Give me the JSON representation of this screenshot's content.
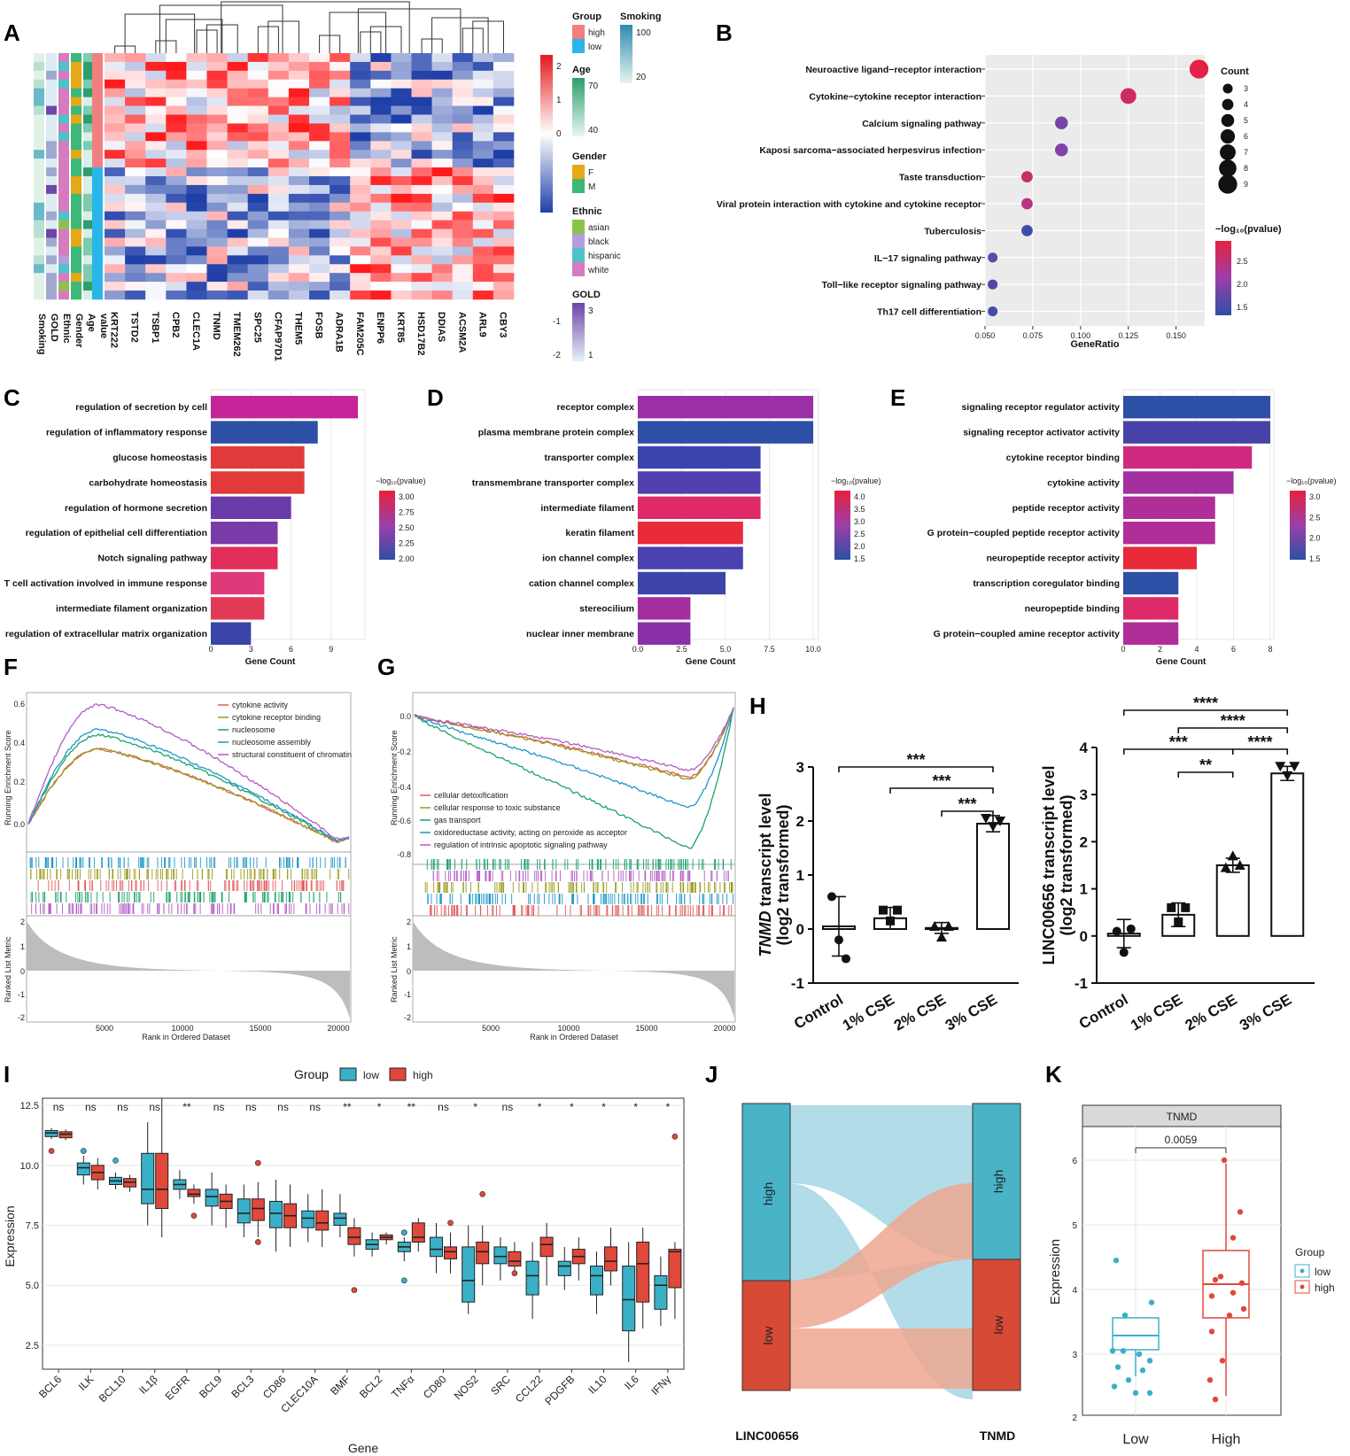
{
  "panels": {
    "A": "A",
    "B": "B",
    "C": "C",
    "D": "D",
    "E": "E",
    "F": "F",
    "G": "G",
    "H": "H",
    "I": "I",
    "J": "J",
    "K": "K"
  },
  "heatmap": {
    "annotation_labels": [
      "Smoking",
      "GOLD",
      "Ethnic",
      "Gender",
      "Age",
      "value"
    ],
    "genes": [
      "KRT222",
      "TSTD2",
      "TSBP1",
      "CPB2",
      "CLEC1A",
      "TNMD",
      "TMEM262",
      "SPC25",
      "CFAP97D1",
      "THEM5",
      "FOSB",
      "ADRA1B",
      "FAM205C",
      "ENPP6",
      "KRT85",
      "HSD17B2",
      "DDIAS",
      "ACSM2A",
      "ARL9",
      "CBY3"
    ],
    "scale_ticks": [
      "2",
      "1",
      "0",
      "-1",
      "-2"
    ],
    "legend": {
      "group_title": "Group",
      "group_items": [
        "high",
        "low"
      ],
      "smoking_title": "Smoking",
      "smoking_ticks": [
        "100",
        "20"
      ],
      "age_title": "Age",
      "age_ticks": [
        "70",
        "40"
      ],
      "gender_title": "Gender",
      "gender_items": [
        "F",
        "M"
      ],
      "ethnic_title": "Ethnic",
      "ethnic_items": [
        "asian",
        "black",
        "hispanic",
        "white"
      ],
      "gold_title": "GOLD",
      "gold_ticks": [
        "3",
        "1"
      ]
    },
    "colors": {
      "high": "#f08080",
      "low": "#29b6e8",
      "F": "#e6a817",
      "M": "#3cb878",
      "asian": "#8bc34a",
      "black": "#b39ddb",
      "hispanic": "#4ec2c7",
      "white": "#d67bbf"
    }
  },
  "chart_data": [
    {
      "panel": "B",
      "type": "scatter",
      "categories": [
        "Neuroactive ligand−receptor interaction",
        "Cytokine−cytokine receptor interaction",
        "Calcium signaling pathway",
        "Kaposi sarcoma−associated herpesvirus infection",
        "Taste transduction",
        "Viral protein interaction with cytokine and cytokine receptor",
        "Tuberculosis",
        "IL−17 signaling pathway",
        "Toll−like receptor signaling pathway",
        "Th17 cell differentiation"
      ],
      "gene_ratio": [
        0.162,
        0.125,
        0.09,
        0.09,
        0.072,
        0.072,
        0.072,
        0.054,
        0.054,
        0.054
      ],
      "count": [
        9,
        7,
        5,
        5,
        4,
        4,
        4,
        3,
        3,
        3
      ],
      "neg_log10_p": [
        2.75,
        2.55,
        1.85,
        1.95,
        2.5,
        2.35,
        1.5,
        1.75,
        1.6,
        1.55
      ],
      "xlabel": "GeneRatio",
      "xlim": [
        0.05,
        0.165
      ],
      "xticks": [
        "0.050",
        "0.075",
        "0.100",
        "0.125",
        "0.150"
      ],
      "size_legend_title": "Count",
      "size_legend": [
        "3",
        "4",
        "5",
        "6",
        "7",
        "8",
        "9"
      ],
      "color_legend_title": "−log₁₀(pvalue)",
      "color_legend_ticks": [
        "2.5",
        "2.0",
        "1.5"
      ]
    },
    {
      "panel": "C",
      "type": "bar",
      "categories": [
        "regulation of secretion by cell",
        "regulation of inflammatory response",
        "glucose homeostasis",
        "carbohydrate homeostasis",
        "regulation of hormone secretion",
        "regulation of epithelial cell differentiation",
        "Notch signaling pathway",
        "T cell activation involved in immune response",
        "intermediate filament organization",
        "regulation of extracellular matrix organization"
      ],
      "values": [
        11,
        8,
        7,
        7,
        6,
        5,
        5,
        4,
        4,
        3
      ],
      "xlabel": "Gene Count",
      "xticks": [
        "0",
        "3",
        "6",
        "9"
      ],
      "legend_title": "−log₁₀(pvalue)",
      "legend_ticks": [
        "3.00",
        "2.75",
        "2.50",
        "2.25",
        "2.00"
      ]
    },
    {
      "panel": "D",
      "type": "bar",
      "categories": [
        "receptor complex",
        "plasma membrane protein complex",
        "transporter complex",
        "transmembrane transporter complex",
        "intermediate filament",
        "keratin filament",
        "ion channel complex",
        "cation channel complex",
        "stereocilium",
        "nuclear inner membrane"
      ],
      "values": [
        10,
        10,
        7,
        7,
        7,
        6,
        6,
        5,
        3,
        3
      ],
      "xlabel": "Gene Count",
      "xticks": [
        "0.0",
        "2.5",
        "5.0",
        "7.5",
        "10.0"
      ],
      "legend_title": "−log₁₀(pvalue)",
      "legend_ticks": [
        "4.0",
        "3.5",
        "3.0",
        "2.5",
        "2.0",
        "1.5"
      ]
    },
    {
      "panel": "E",
      "type": "bar",
      "categories": [
        "signaling receptor regulator activity",
        "signaling receptor activator activity",
        "cytokine receptor binding",
        "cytokine activity",
        "peptide receptor activity",
        "G protein−coupled peptide receptor activity",
        "neuropeptide receptor activity",
        "transcription coregulator binding",
        "neuropeptide binding",
        "G protein−coupled amine receptor activity"
      ],
      "values": [
        8,
        8,
        7,
        6,
        5,
        5,
        4,
        3,
        3,
        3
      ],
      "xlabel": "Gene Count",
      "xticks": [
        "0",
        "2",
        "4",
        "6",
        "8"
      ],
      "legend_title": "−log₁₀(pvalue)",
      "legend_ticks": [
        "3.0",
        "2.5",
        "2.0",
        "1.5"
      ]
    },
    {
      "panel": "F",
      "type": "line",
      "series": [
        "cytokine activity",
        "cytokine receptor binding",
        "nucleosome",
        "nucleosome assembly",
        "structural constituent of chromatin"
      ],
      "ylabel": "Running Enrichment Score",
      "ylabel2": "Ranked List Metric",
      "xlabel": "Rank in Ordered Dataset",
      "yticks": [
        "0.6",
        "0.4",
        "0.2",
        "0.0"
      ],
      "yticks2": [
        "2",
        "1",
        "0",
        "-1",
        "-2"
      ],
      "xticks": [
        "5000",
        "10000",
        "15000",
        "20000"
      ]
    },
    {
      "panel": "G",
      "type": "line",
      "series": [
        "cellular detoxification",
        "cellular response to toxic substance",
        "gas transport",
        "oxidoreductase activity, acting on peroxide as acceptor",
        "regulation of intrinsic apoptotic signaling pathway"
      ],
      "ylabel": "Running Enrichment Score",
      "ylabel2": "Ranked List Metric",
      "xlabel": "Rank in Ordered Dataset",
      "yticks": [
        "0.0",
        "-0.2",
        "-0.4",
        "-0.6",
        "-0.8"
      ],
      "yticks2": [
        "2",
        "1",
        "0",
        "-1",
        "-2"
      ],
      "xticks": [
        "5000",
        "10000",
        "15000",
        "20000"
      ]
    },
    {
      "panel": "H1",
      "type": "bar",
      "categories": [
        "Control",
        "1% CSE",
        "2% CSE",
        "3% CSE"
      ],
      "values": [
        0.05,
        0.2,
        0.02,
        1.95
      ],
      "ylabel_italic": "TNMD",
      "ylabel": " transcript level",
      "ylabel2": "(log2 transformed)",
      "ylim": [
        -1,
        3
      ],
      "yticks": [
        "-1",
        "0",
        "1",
        "2",
        "3"
      ],
      "significance": [
        "***",
        "***",
        "***"
      ]
    },
    {
      "panel": "H2",
      "type": "bar",
      "categories": [
        "Control",
        "1% CSE",
        "2% CSE",
        "3% CSE"
      ],
      "values": [
        0.05,
        0.45,
        1.5,
        3.45
      ],
      "ylabel": "LINC00656 transcript level",
      "ylabel2": "(log2 transformed)",
      "ylim": [
        -1,
        4
      ],
      "yticks": [
        "-1",
        "0",
        "1",
        "2",
        "3",
        "4"
      ],
      "significance": [
        "****",
        "****",
        "***",
        "****",
        "**"
      ]
    },
    {
      "panel": "I",
      "type": "box",
      "categories": [
        "BCL6",
        "ILK",
        "BCL10",
        "IL1β",
        "EGFR",
        "BCL9",
        "BCL3",
        "CD86",
        "CLEC10A",
        "BMF",
        "BCL2",
        "TNFα",
        "CD80",
        "NOS2",
        "SRC",
        "CCL22",
        "PDGFB",
        "IL10",
        "IL6",
        "IFNγ"
      ],
      "significance": [
        "ns",
        "ns",
        "ns",
        "ns",
        "**",
        "ns",
        "ns",
        "ns",
        "ns",
        "**",
        "*",
        "**",
        "ns",
        "*",
        "ns",
        "*",
        "*",
        "*",
        "*",
        "*"
      ],
      "legend_title": "Group",
      "legend_items": [
        "low",
        "high"
      ],
      "ylabel": "Expression",
      "xlabel": "Gene",
      "yticks": [
        "12.5",
        "10.0",
        "7.5",
        "5.0",
        "2.5"
      ]
    },
    {
      "panel": "J",
      "type": "alluvial",
      "axes": [
        "LINC00656",
        "TNMD"
      ],
      "strata": [
        "high",
        "low"
      ]
    },
    {
      "panel": "K",
      "type": "box",
      "strip_title": "TNMD",
      "pvalue": "0.0059",
      "categories": [
        "Low",
        "High"
      ],
      "ylabel": "Expression",
      "yticks": [
        "6",
        "5",
        "4",
        "3",
        "2"
      ],
      "legend_title": "Group",
      "legend_items": [
        "low",
        "high"
      ]
    }
  ]
}
